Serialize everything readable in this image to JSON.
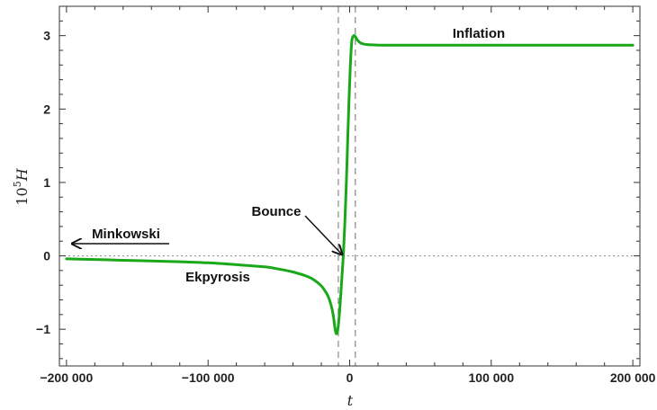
{
  "chart_data": {
    "type": "line",
    "title": "",
    "xlabel": "t",
    "ylabel_base": "10",
    "ylabel_exp": "5",
    "ylabel_var": "H",
    "xlim": [
      -205000,
      205000
    ],
    "ylim": [
      -1.5,
      3.4
    ],
    "x_ticks": [
      {
        "value": -200000,
        "label": "−200 000"
      },
      {
        "value": -100000,
        "label": "−100 000"
      },
      {
        "value": 0,
        "label": "0"
      },
      {
        "value": 100000,
        "label": "100 000"
      },
      {
        "value": 200000,
        "label": "200 000"
      }
    ],
    "y_ticks": [
      {
        "value": -1,
        "label": "−1"
      },
      {
        "value": 0,
        "label": "0"
      },
      {
        "value": 1,
        "label": "1"
      },
      {
        "value": 2,
        "label": "2"
      },
      {
        "value": 3,
        "label": "3"
      }
    ],
    "grid": false,
    "reference_lines": {
      "horizontal_dotted_y": 0,
      "vertical_dashed_x": [
        -8000,
        4000
      ]
    },
    "series": [
      {
        "color": "#1aa81a",
        "x": [
          -200000,
          -180000,
          -160000,
          -140000,
          -120000,
          -100000,
          -80000,
          -60000,
          -50000,
          -40000,
          -30000,
          -25000,
          -20000,
          -17000,
          -15000,
          -13000,
          -11500,
          -10500,
          -9500,
          -8500,
          -7500,
          -6500,
          -5500,
          -4500,
          -3500,
          -2500,
          -1500,
          -500,
          500,
          1500,
          2500,
          3500,
          4500,
          5500,
          7000,
          9000,
          12000,
          16000,
          25000,
          50000,
          100000,
          150000,
          200000
        ],
        "y": [
          -0.04,
          -0.05,
          -0.06,
          -0.07,
          -0.08,
          -0.095,
          -0.12,
          -0.15,
          -0.18,
          -0.22,
          -0.28,
          -0.33,
          -0.41,
          -0.49,
          -0.56,
          -0.68,
          -0.82,
          -0.97,
          -1.06,
          -1.02,
          -0.85,
          -0.6,
          -0.3,
          0.0,
          0.4,
          0.9,
          1.5,
          2.1,
          2.6,
          2.92,
          2.99,
          3.0,
          2.97,
          2.94,
          2.91,
          2.89,
          2.88,
          2.875,
          2.87,
          2.87,
          2.87,
          2.87,
          2.87
        ]
      }
    ],
    "annotations": [
      {
        "text": "Inflation"
      },
      {
        "text": "Minkowski"
      },
      {
        "text": "Bounce"
      },
      {
        "text": "Ekpyrosis"
      }
    ]
  }
}
